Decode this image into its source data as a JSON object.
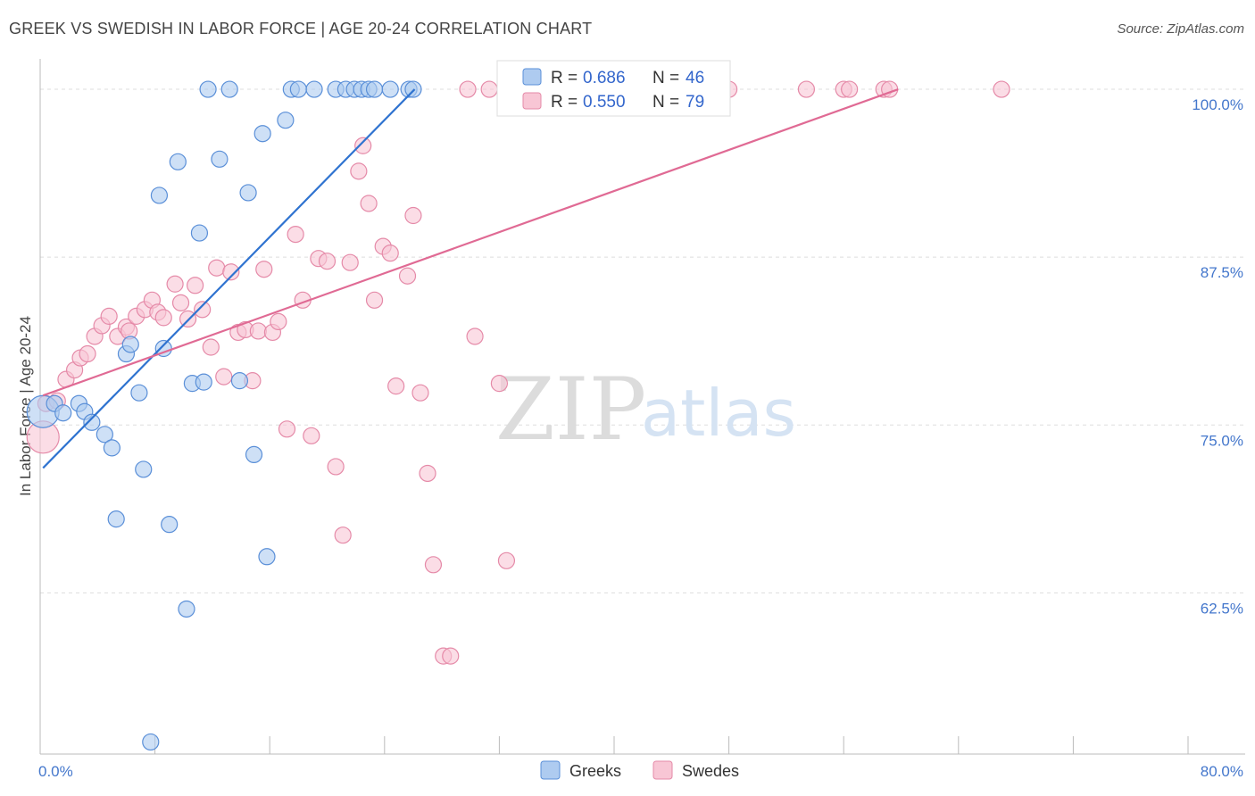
{
  "header": {
    "title": "GREEK VS SWEDISH IN LABOR FORCE | AGE 20-24 CORRELATION CHART",
    "source": "Source: ZipAtlas.com"
  },
  "watermark": {
    "zip": "ZIP",
    "atlas": "atlas"
  },
  "colors": {
    "greek_fill": "#aecbf0",
    "greek_stroke": "#5a8fd8",
    "greek_line": "#2f73d0",
    "swede_fill": "#f8c6d5",
    "swede_stroke": "#e58aa8",
    "swede_line": "#e06a94",
    "tick": "#4477cc",
    "grid": "#dddddd"
  },
  "chart_data": {
    "type": "scatter",
    "title": "GREEK VS SWEDISH IN LABOR FORCE | AGE 20-24 CORRELATION CHART",
    "xlabel": "",
    "ylabel": "In Labor Force | Age 20-24",
    "xlim": [
      0,
      80
    ],
    "ylim": [
      50.5,
      101.2
    ],
    "x_tick_labels": [
      {
        "value": 0,
        "label": "0.0%"
      },
      {
        "value": 80,
        "label": "80.0%"
      }
    ],
    "y_tick_labels": [
      {
        "value": 100,
        "label": "100.0%"
      },
      {
        "value": 87.5,
        "label": "87.5%"
      },
      {
        "value": 75,
        "label": "75.0%"
      },
      {
        "value": 62.5,
        "label": "62.5%"
      }
    ],
    "legend": {
      "position": "top-center",
      "entries": [
        {
          "series": "Greeks",
          "r_label": "R =",
          "r_value": "0.686",
          "n_label": "N =",
          "n_value": "46"
        },
        {
          "series": "Swedes",
          "r_label": "R =",
          "r_value": "0.550",
          "n_label": "N =",
          "n_value": "79"
        }
      ]
    },
    "bottom_legend": [
      "Greeks",
      "Swedes"
    ],
    "series": [
      {
        "name": "Greeks",
        "trend": {
          "x": [
            0.2,
            26.1
          ],
          "y": [
            71.8,
            100.0
          ]
        },
        "points": [
          [
            0.2,
            76.0,
            18
          ],
          [
            1.0,
            76.6,
            9
          ],
          [
            1.6,
            75.9,
            9
          ],
          [
            2.7,
            76.6,
            9
          ],
          [
            3.1,
            76.0,
            9
          ],
          [
            3.6,
            75.2,
            9
          ],
          [
            4.5,
            74.3,
            9
          ],
          [
            5.0,
            73.3,
            9
          ],
          [
            5.3,
            68.0,
            9
          ],
          [
            6.0,
            80.3,
            9
          ],
          [
            6.3,
            81.0,
            9
          ],
          [
            6.9,
            77.4,
            9
          ],
          [
            7.2,
            71.7,
            9
          ],
          [
            7.7,
            51.4,
            9
          ],
          [
            8.3,
            92.1,
            9
          ],
          [
            8.6,
            80.7,
            9
          ],
          [
            9.0,
            67.6,
            9
          ],
          [
            9.6,
            94.6,
            9
          ],
          [
            10.2,
            61.3,
            9
          ],
          [
            10.6,
            78.1,
            9
          ],
          [
            11.1,
            89.3,
            9
          ],
          [
            11.4,
            78.2,
            9
          ],
          [
            11.7,
            100.0,
            9
          ],
          [
            12.5,
            94.8,
            9
          ],
          [
            13.2,
            100.0,
            9
          ],
          [
            13.9,
            78.3,
            9
          ],
          [
            14.5,
            92.3,
            9
          ],
          [
            14.9,
            72.8,
            9
          ],
          [
            15.5,
            96.7,
            9
          ],
          [
            15.8,
            65.2,
            9
          ],
          [
            17.1,
            97.7,
            9
          ],
          [
            17.5,
            100.0,
            9
          ],
          [
            18.0,
            100.0,
            9
          ],
          [
            19.1,
            100.0,
            9
          ],
          [
            20.6,
            100.0,
            9
          ],
          [
            21.3,
            100.0,
            9
          ],
          [
            21.9,
            100.0,
            9
          ],
          [
            22.4,
            100.0,
            9
          ],
          [
            22.9,
            100.0,
            9
          ],
          [
            23.3,
            100.0,
            9
          ],
          [
            24.4,
            100.0,
            9
          ],
          [
            25.7,
            100.0,
            9
          ],
          [
            26.0,
            100.0,
            9
          ]
        ]
      },
      {
        "name": "Swedes",
        "trend": {
          "x": [
            0.2,
            59.8
          ],
          "y": [
            77.2,
            100.0
          ]
        },
        "points": [
          [
            0.2,
            74.1,
            18
          ],
          [
            0.4,
            76.6,
            9
          ],
          [
            1.2,
            76.8,
            9
          ],
          [
            1.8,
            78.4,
            9
          ],
          [
            2.4,
            79.1,
            9
          ],
          [
            2.8,
            80.0,
            9
          ],
          [
            3.3,
            80.3,
            9
          ],
          [
            3.8,
            81.6,
            9
          ],
          [
            4.3,
            82.4,
            9
          ],
          [
            4.8,
            83.1,
            9
          ],
          [
            5.4,
            81.6,
            9
          ],
          [
            6.0,
            82.3,
            9
          ],
          [
            6.2,
            82.0,
            9
          ],
          [
            6.7,
            83.1,
            9
          ],
          [
            7.3,
            83.6,
            9
          ],
          [
            7.8,
            84.3,
            9
          ],
          [
            8.2,
            83.4,
            9
          ],
          [
            8.6,
            83.0,
            9
          ],
          [
            9.4,
            85.5,
            9
          ],
          [
            9.8,
            84.1,
            9
          ],
          [
            10.3,
            82.9,
            9
          ],
          [
            10.8,
            85.4,
            9
          ],
          [
            11.3,
            83.6,
            9
          ],
          [
            11.9,
            80.8,
            9
          ],
          [
            12.3,
            86.7,
            9
          ],
          [
            12.8,
            78.6,
            9
          ],
          [
            13.3,
            86.4,
            9
          ],
          [
            13.8,
            81.9,
            9
          ],
          [
            14.3,
            82.1,
            9
          ],
          [
            14.8,
            78.3,
            9
          ],
          [
            15.2,
            82.0,
            9
          ],
          [
            15.6,
            86.6,
            9
          ],
          [
            16.2,
            81.9,
            9
          ],
          [
            16.6,
            82.7,
            9
          ],
          [
            17.2,
            74.7,
            9
          ],
          [
            17.8,
            89.2,
            9
          ],
          [
            18.3,
            84.3,
            9
          ],
          [
            18.9,
            74.2,
            9
          ],
          [
            19.4,
            87.4,
            9
          ],
          [
            20.0,
            87.2,
            9
          ],
          [
            20.6,
            71.9,
            9
          ],
          [
            21.1,
            66.8,
            9
          ],
          [
            21.6,
            87.1,
            9
          ],
          [
            22.2,
            93.9,
            9
          ],
          [
            22.5,
            95.8,
            9
          ],
          [
            22.9,
            91.5,
            9
          ],
          [
            23.3,
            84.3,
            9
          ],
          [
            23.9,
            88.3,
            9
          ],
          [
            24.4,
            87.8,
            9
          ],
          [
            24.8,
            77.9,
            9
          ],
          [
            25.6,
            86.1,
            9
          ],
          [
            26.0,
            90.6,
            9
          ],
          [
            26.5,
            77.4,
            9
          ],
          [
            27.0,
            71.4,
            9
          ],
          [
            27.4,
            64.6,
            9
          ],
          [
            28.1,
            57.8,
            9
          ],
          [
            28.6,
            57.8,
            9
          ],
          [
            29.8,
            100.0,
            9
          ],
          [
            30.3,
            81.6,
            9
          ],
          [
            31.3,
            100.0,
            9
          ],
          [
            32.0,
            78.1,
            9
          ],
          [
            32.5,
            64.9,
            9
          ],
          [
            33.1,
            100.0,
            9
          ],
          [
            34.4,
            100.0,
            9
          ],
          [
            37.6,
            100.0,
            9
          ],
          [
            40.1,
            100.0,
            9
          ],
          [
            43.9,
            100.0,
            9
          ],
          [
            46.3,
            100.0,
            9
          ],
          [
            48.0,
            100.0,
            9
          ],
          [
            53.4,
            100.0,
            9
          ],
          [
            56.0,
            100.0,
            9
          ],
          [
            56.4,
            100.0,
            9
          ],
          [
            58.8,
            100.0,
            9
          ],
          [
            59.2,
            100.0,
            9
          ],
          [
            67.0,
            100.0,
            9
          ]
        ]
      }
    ]
  }
}
